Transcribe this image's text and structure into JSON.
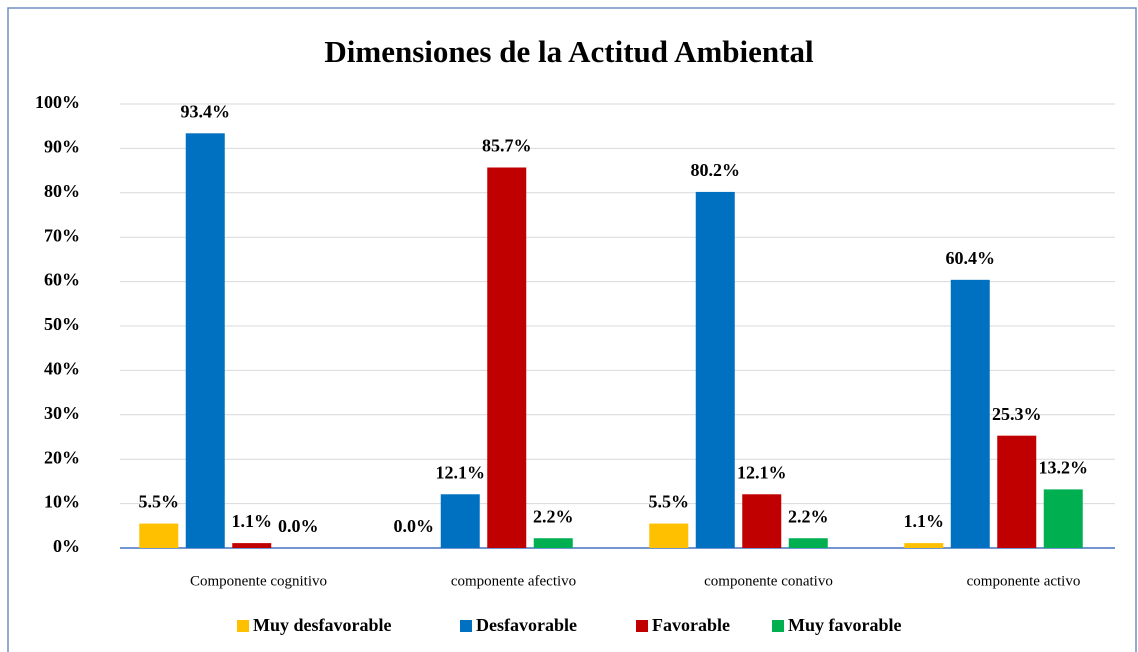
{
  "chart_data": {
    "type": "bar",
    "title": "Dimensiones de la Actitud Ambiental",
    "categories": [
      "Componente cognitivo",
      "componente afectivo",
      "componente conativo",
      "componente activo"
    ],
    "series": [
      {
        "name": "Muy desfavorable",
        "color": "#ffc000",
        "values": [
          5.5,
          0.0,
          5.5,
          1.1
        ],
        "value_labels": [
          "5.5%",
          "0.0%",
          "5.5%",
          "1.1%"
        ]
      },
      {
        "name": "Desfavorable",
        "color": "#0070c0",
        "values": [
          93.4,
          12.1,
          80.2,
          60.4
        ],
        "value_labels": [
          "93.4%",
          "12.1%",
          "80.2%",
          "60.4%"
        ]
      },
      {
        "name": "Favorable",
        "color": "#c00000",
        "values": [
          1.1,
          85.7,
          12.1,
          25.3
        ],
        "value_labels": [
          "1.1%",
          "85.7%",
          "12.1%",
          "25.3%"
        ]
      },
      {
        "name": "Muy favorable",
        "color": "#00b050",
        "values": [
          0.0,
          2.2,
          2.2,
          13.2
        ],
        "value_labels": [
          "0.0%",
          "2.2%",
          "2.2%",
          "13.2%"
        ]
      }
    ],
    "ylim": [
      0,
      100
    ],
    "yticks": [
      {
        "value": 0,
        "label": "0%"
      },
      {
        "value": 10,
        "label": "10%"
      },
      {
        "value": 20,
        "label": "20%"
      },
      {
        "value": 30,
        "label": "30%"
      },
      {
        "value": 40,
        "label": "40%"
      },
      {
        "value": 50,
        "label": "50%"
      },
      {
        "value": 60,
        "label": "60%"
      },
      {
        "value": 70,
        "label": "70%"
      },
      {
        "value": 80,
        "label": "80%"
      },
      {
        "value": 90,
        "label": "90%"
      },
      {
        "value": 100,
        "label": "100%"
      }
    ],
    "grid": true,
    "legend": "bottom"
  }
}
